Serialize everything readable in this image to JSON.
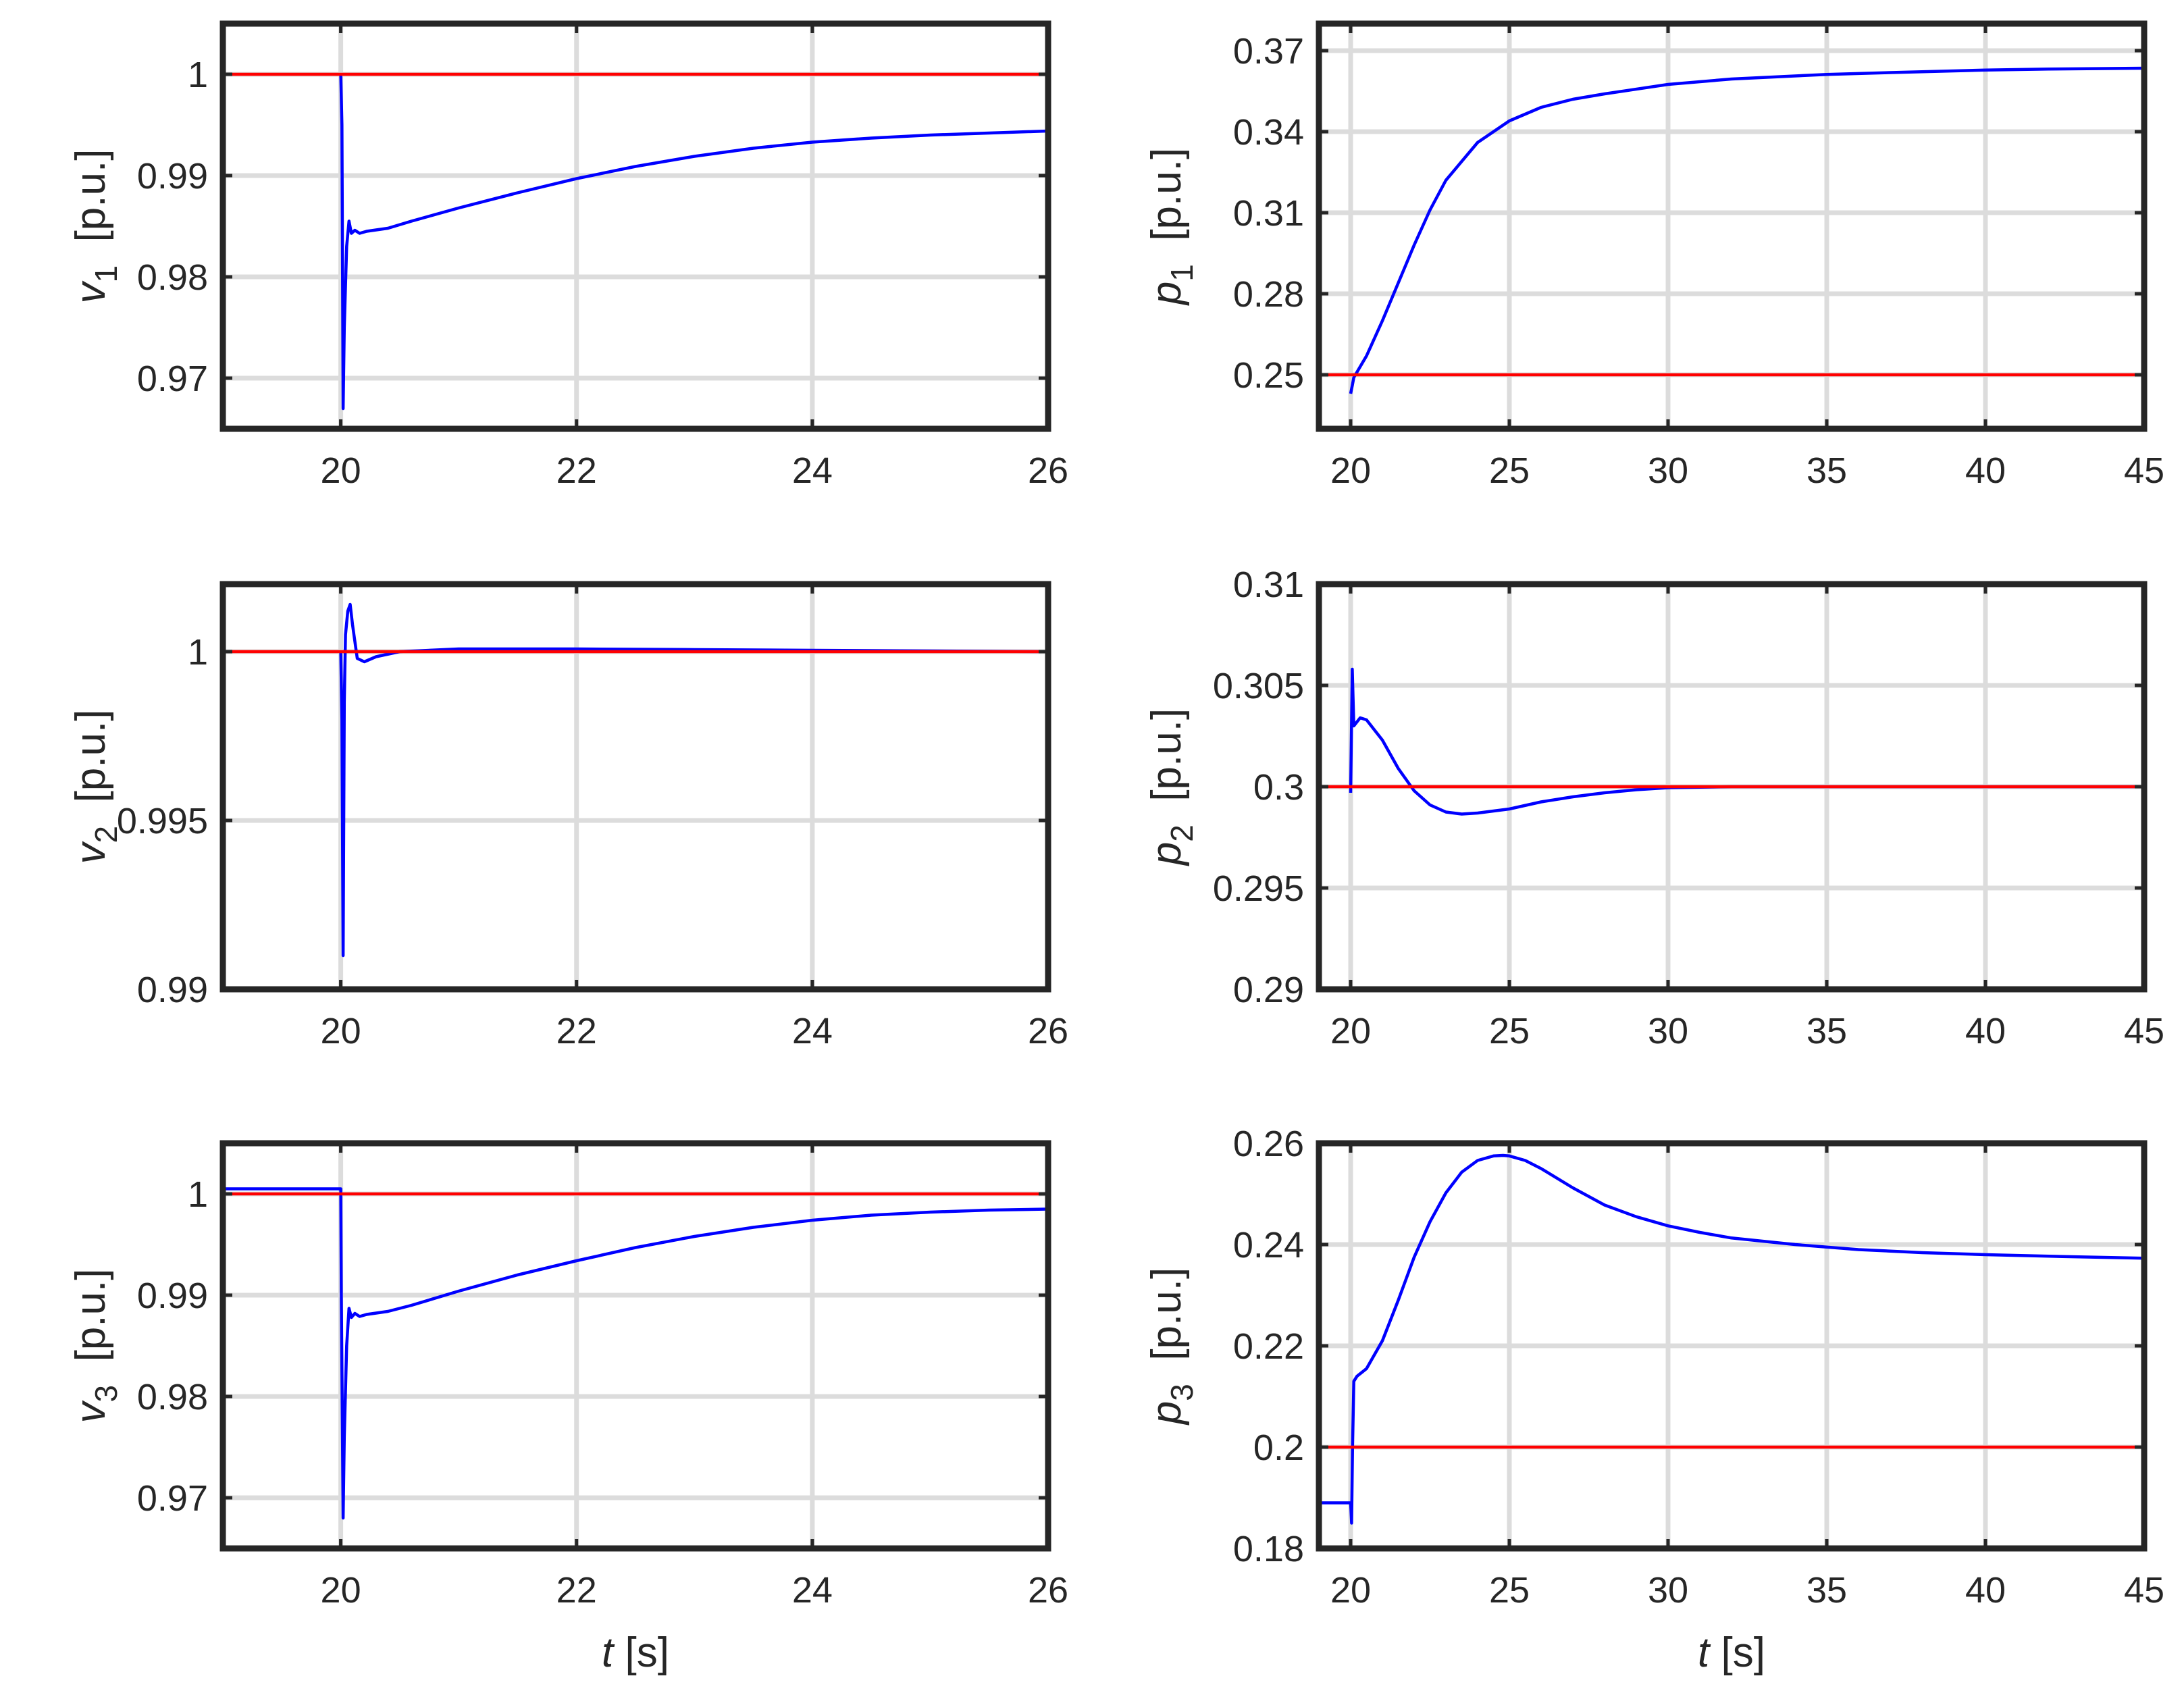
{
  "colors": {
    "signal": "#0000ff",
    "reference": "#ff0000",
    "grid": "#dcdcdc",
    "axes": "#262626",
    "text": "#262626"
  },
  "chart_data": [
    {
      "type": "line",
      "panel": "v1",
      "ylabel": {
        "var": "v",
        "sub": "1",
        "unit": "[p.u.]"
      },
      "xlabel": "",
      "xlim": [
        19,
        26
      ],
      "ylim": [
        0.965,
        1.005
      ],
      "xticks": [
        20,
        22,
        24,
        26
      ],
      "xtick_labels": [
        "20",
        "22",
        "24",
        "26"
      ],
      "yticks": [
        0.97,
        0.98,
        0.99,
        1.0
      ],
      "ytick_labels": [
        "0.97",
        "0.98",
        "0.99",
        "1"
      ],
      "grid": true,
      "legend": "none",
      "series": [
        {
          "role": "signal",
          "x": [
            20.0,
            20.01,
            20.02,
            20.03,
            20.05,
            20.07,
            20.09,
            20.12,
            20.16,
            20.22,
            20.4,
            20.6,
            21.0,
            21.5,
            22.0,
            22.5,
            23.0,
            23.5,
            24.0,
            24.5,
            25.0,
            25.5,
            26.0
          ],
          "y": [
            1.0,
            0.995,
            0.967,
            0.975,
            0.983,
            0.9855,
            0.9843,
            0.9846,
            0.9843,
            0.9845,
            0.9848,
            0.9855,
            0.9868,
            0.9883,
            0.9897,
            0.9909,
            0.9919,
            0.9927,
            0.9933,
            0.9937,
            0.994,
            0.9942,
            0.9944
          ]
        },
        {
          "role": "reference",
          "x": [
            19,
            26
          ],
          "y": [
            1.0,
            1.0
          ]
        }
      ]
    },
    {
      "type": "line",
      "panel": "p1",
      "ylabel": {
        "var": "p",
        "sub": "1",
        "unit": "[p.u.]"
      },
      "xlabel": "",
      "xlim": [
        19,
        45
      ],
      "ylim": [
        0.23,
        0.38
      ],
      "xticks": [
        20,
        25,
        30,
        35,
        40,
        45
      ],
      "xtick_labels": [
        "20",
        "25",
        "30",
        "35",
        "40",
        "45"
      ],
      "yticks": [
        0.25,
        0.28,
        0.31,
        0.34,
        0.37
      ],
      "ytick_labels": [
        "0.25",
        "0.28",
        "0.31",
        "0.34",
        "0.37"
      ],
      "grid": true,
      "legend": "none",
      "series": [
        {
          "role": "signal",
          "x": [
            20.0,
            20.05,
            20.1,
            20.2,
            20.5,
            21.0,
            21.5,
            22.0,
            22.5,
            23.0,
            24.0,
            25.0,
            26.0,
            27.0,
            28.0,
            30.0,
            32.0,
            35.0,
            38.0,
            40.0,
            42.0,
            45.0
          ],
          "y": [
            0.243,
            0.246,
            0.249,
            0.251,
            0.257,
            0.27,
            0.284,
            0.298,
            0.311,
            0.322,
            0.336,
            0.344,
            0.349,
            0.352,
            0.354,
            0.3575,
            0.3595,
            0.3612,
            0.3622,
            0.3628,
            0.3632,
            0.3635
          ]
        },
        {
          "role": "reference",
          "x": [
            19,
            45
          ],
          "y": [
            0.25,
            0.25
          ]
        }
      ]
    },
    {
      "type": "line",
      "panel": "v2",
      "ylabel": {
        "var": "v",
        "sub": "2",
        "unit": "[p.u.]"
      },
      "xlabel": "",
      "xlim": [
        19,
        26
      ],
      "ylim": [
        0.99,
        1.002
      ],
      "xticks": [
        20,
        22,
        24,
        26
      ],
      "xtick_labels": [
        "20",
        "22",
        "24",
        "26"
      ],
      "yticks": [
        0.99,
        0.995,
        1.0
      ],
      "ytick_labels": [
        "0.99",
        "0.995",
        "1"
      ],
      "grid": true,
      "legend": "none",
      "series": [
        {
          "role": "signal",
          "x": [
            20.0,
            20.01,
            20.02,
            20.03,
            20.04,
            20.06,
            20.08,
            20.1,
            20.14,
            20.2,
            20.3,
            20.5,
            21.0,
            22.0,
            23.0,
            24.0,
            25.0,
            26.0
          ],
          "y": [
            1.0,
            0.998,
            0.991,
            0.9985,
            1.0005,
            1.0012,
            1.0014,
            1.0008,
            0.9998,
            0.9997,
            0.99985,
            1.0,
            1.00008,
            1.00008,
            1.00006,
            1.00004,
            1.00002,
            1.0
          ]
        },
        {
          "role": "reference",
          "x": [
            19,
            26
          ],
          "y": [
            1.0,
            1.0
          ]
        }
      ]
    },
    {
      "type": "line",
      "panel": "p2",
      "ylabel": {
        "var": "p",
        "sub": "2",
        "unit": "[p.u.]"
      },
      "xlabel": "",
      "xlim": [
        19,
        45
      ],
      "ylim": [
        0.29,
        0.31
      ],
      "xticks": [
        20,
        25,
        30,
        35,
        40,
        45
      ],
      "xtick_labels": [
        "20",
        "25",
        "30",
        "35",
        "40",
        "45"
      ],
      "yticks": [
        0.29,
        0.295,
        0.3,
        0.305,
        0.31
      ],
      "ytick_labels": [
        "0.29",
        "0.295",
        "0.3",
        "0.305",
        "0.31"
      ],
      "grid": true,
      "legend": "none",
      "series": [
        {
          "role": "signal",
          "x": [
            20.0,
            20.05,
            20.1,
            20.2,
            20.3,
            20.5,
            21.0,
            21.5,
            22.0,
            22.5,
            23.0,
            23.5,
            24.0,
            25.0,
            26.0,
            27.0,
            28.0,
            29.0,
            30.0,
            32.0,
            35.0,
            40.0,
            45.0
          ],
          "y": [
            0.2997,
            0.3058,
            0.303,
            0.3032,
            0.3034,
            0.3033,
            0.3023,
            0.3009,
            0.2998,
            0.2991,
            0.29875,
            0.29865,
            0.2987,
            0.2989,
            0.29925,
            0.2995,
            0.2997,
            0.29985,
            0.29995,
            0.3,
            0.3,
            0.3,
            0.3
          ]
        },
        {
          "role": "reference",
          "x": [
            19,
            45
          ],
          "y": [
            0.3,
            0.3
          ]
        }
      ]
    },
    {
      "type": "line",
      "panel": "v3",
      "ylabel": {
        "var": "v",
        "sub": "3",
        "unit": "[p.u.]"
      },
      "xlabel": "t [s]",
      "xlabel_var": "t",
      "xlabel_unit": "[s]",
      "xlim": [
        19,
        26
      ],
      "ylim": [
        0.965,
        1.005
      ],
      "xticks": [
        20,
        22,
        24,
        26
      ],
      "xtick_labels": [
        "20",
        "22",
        "24",
        "26"
      ],
      "yticks": [
        0.97,
        0.98,
        0.99,
        1.0
      ],
      "ytick_labels": [
        "0.97",
        "0.98",
        "0.99",
        "1"
      ],
      "grid": true,
      "legend": "none",
      "series": [
        {
          "role": "signal",
          "x": [
            19.0,
            20.0,
            20.005,
            20.02,
            20.03,
            20.05,
            20.07,
            20.09,
            20.12,
            20.16,
            20.22,
            20.4,
            20.6,
            21.0,
            21.5,
            22.0,
            22.5,
            23.0,
            23.5,
            24.0,
            24.5,
            25.0,
            25.5,
            26.0
          ],
          "y": [
            1.0005,
            1.0005,
            0.99,
            0.968,
            0.976,
            0.985,
            0.9887,
            0.9878,
            0.9882,
            0.9879,
            0.9881,
            0.9884,
            0.989,
            0.9904,
            0.992,
            0.9934,
            0.9947,
            0.9958,
            0.9967,
            0.9974,
            0.9979,
            0.9982,
            0.9984,
            0.9985
          ]
        },
        {
          "role": "reference",
          "x": [
            19,
            26
          ],
          "y": [
            1.0,
            1.0
          ]
        }
      ]
    },
    {
      "type": "line",
      "panel": "p3",
      "ylabel": {
        "var": "p",
        "sub": "3",
        "unit": "[p.u.]"
      },
      "xlabel": "t [s]",
      "xlabel_var": "t",
      "xlabel_unit": "[s]",
      "xlim": [
        19,
        45
      ],
      "ylim": [
        0.18,
        0.26
      ],
      "xticks": [
        20,
        25,
        30,
        35,
        40,
        45
      ],
      "xtick_labels": [
        "20",
        "25",
        "30",
        "35",
        "40",
        "45"
      ],
      "yticks": [
        0.18,
        0.2,
        0.22,
        0.24,
        0.26
      ],
      "ytick_labels": [
        "0.18",
        "0.2",
        "0.22",
        "0.24",
        "0.26"
      ],
      "grid": true,
      "legend": "none",
      "series": [
        {
          "role": "signal",
          "x": [
            19.0,
            20.0,
            20.03,
            20.06,
            20.1,
            20.2,
            20.5,
            21.0,
            21.5,
            22.0,
            22.5,
            23.0,
            23.5,
            24.0,
            24.5,
            24.8,
            25.0,
            25.5,
            26.0,
            27.0,
            28.0,
            29.0,
            30.0,
            31.0,
            32.0,
            34.0,
            36.0,
            38.0,
            40.0,
            42.0,
            45.0
          ],
          "y": [
            0.189,
            0.189,
            0.185,
            0.2,
            0.213,
            0.214,
            0.2155,
            0.221,
            0.229,
            0.2375,
            0.2445,
            0.2502,
            0.2543,
            0.2566,
            0.2575,
            0.2576,
            0.2575,
            0.2566,
            0.255,
            0.2512,
            0.2478,
            0.2455,
            0.2437,
            0.2424,
            0.2413,
            0.24,
            0.239,
            0.2384,
            0.238,
            0.2377,
            0.2373
          ]
        },
        {
          "role": "reference",
          "x": [
            19,
            45
          ],
          "y": [
            0.2,
            0.2
          ]
        }
      ]
    }
  ]
}
